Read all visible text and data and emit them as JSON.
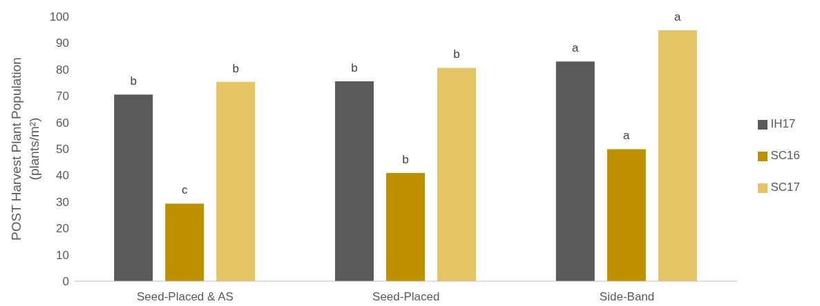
{
  "chart_data": {
    "type": "bar",
    "ylabel": "POST Harvest Plant Population (plants/m²)",
    "categories": [
      "Seed-Placed & AS",
      "Seed-Placed",
      "Side-Band"
    ],
    "series": [
      {
        "name": "IH17",
        "color": "#5a5a5a",
        "values": [
          70.5,
          75.5,
          83
        ],
        "value_labels": [
          "b",
          "b",
          "a"
        ]
      },
      {
        "name": "SC16",
        "color": "#bf9000",
        "values": [
          29.3,
          40.9,
          49.9
        ],
        "value_labels": [
          "c",
          "b",
          "a"
        ]
      },
      {
        "name": "SC17",
        "color": "#e3c565",
        "values": [
          75.3,
          80.6,
          94.8
        ],
        "value_labels": [
          "b",
          "b",
          "a"
        ]
      }
    ],
    "ylim": [
      0,
      100
    ],
    "yticks": [
      0,
      10,
      20,
      30,
      40,
      50,
      60,
      70,
      80,
      90,
      100
    ],
    "grid": false,
    "legend": "right"
  }
}
